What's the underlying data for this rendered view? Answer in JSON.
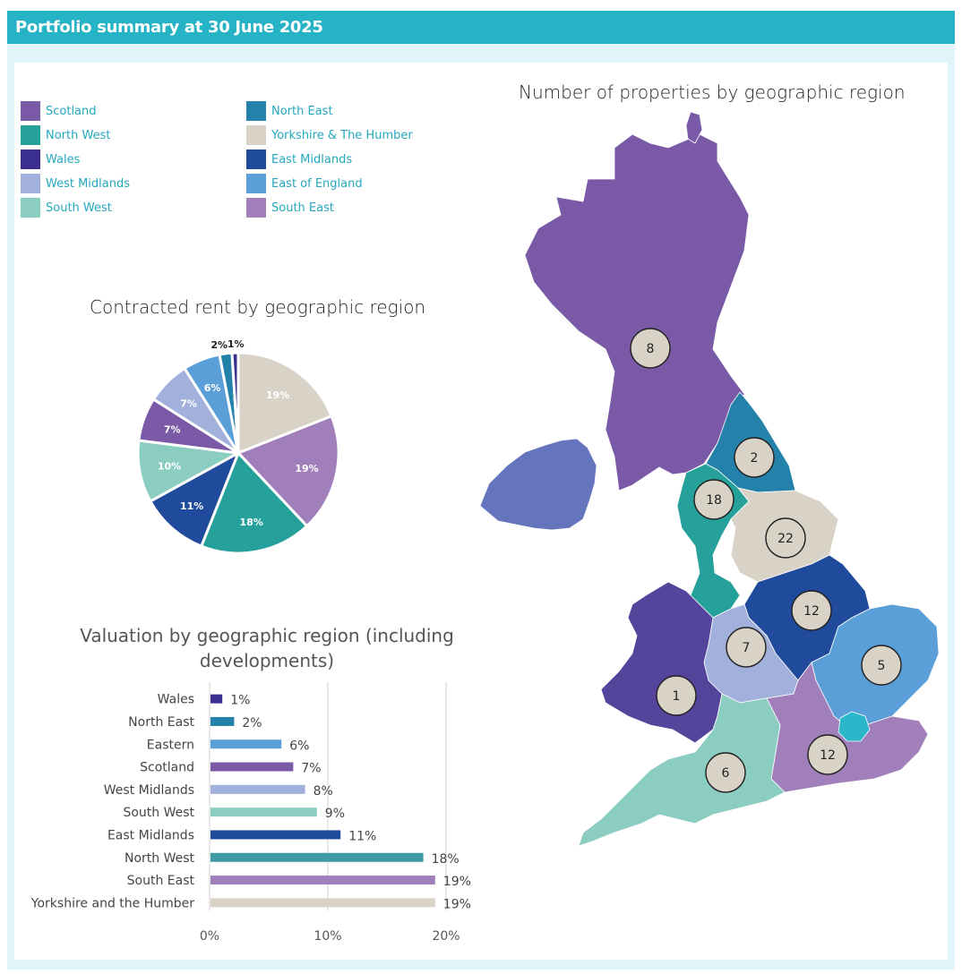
{
  "header": {
    "title": "Portfolio summary at 30 June 2025"
  },
  "colors": {
    "banner": "#25b3c5",
    "frame": "#dff5fa",
    "legend_text": "#25a8bd",
    "region_circle": "#d9d3c7"
  },
  "legend": {
    "items": [
      {
        "label": "Scotland",
        "color": "#7a5aa6"
      },
      {
        "label": "North West",
        "color": "#25a09a"
      },
      {
        "label": "Wales",
        "color": "#3a2f8f"
      },
      {
        "label": "West Midlands",
        "color": "#a2b1dc"
      },
      {
        "label": "South West",
        "color": "#8ccdc1"
      },
      {
        "label": "North East",
        "color": "#2482aa"
      },
      {
        "label": "Yorkshire & The Humber",
        "color": "#d9d3c7"
      },
      {
        "label": "East Midlands",
        "color": "#204a9b"
      },
      {
        "label": "East of England",
        "color": "#5b9fd8"
      },
      {
        "label": "South East",
        "color": "#a17fbb"
      }
    ]
  },
  "map": {
    "title": "Number of properties by geographic region",
    "regions": [
      {
        "name": "Scotland",
        "count": "8",
        "color": "#7a5aa6"
      },
      {
        "name": "Northern Ireland",
        "count": "",
        "color": "#6575bd"
      },
      {
        "name": "North East",
        "count": "2",
        "color": "#2482aa"
      },
      {
        "name": "North West",
        "count": "18",
        "color": "#25a09a"
      },
      {
        "name": "Yorkshire & The Humber",
        "count": "22",
        "color": "#d9d3c7"
      },
      {
        "name": "East Midlands",
        "count": "12",
        "color": "#204a9b"
      },
      {
        "name": "West Midlands",
        "count": "7",
        "color": "#a2b1dc"
      },
      {
        "name": "East of England",
        "count": "5",
        "color": "#5b9fd8"
      },
      {
        "name": "Wales",
        "count": "1",
        "color": "#54449c"
      },
      {
        "name": "South East",
        "count": "12",
        "color": "#a17fbb"
      },
      {
        "name": "South West",
        "count": "6",
        "color": "#8ccdc1"
      },
      {
        "name": "London",
        "count": "",
        "color": "#2bb6c9"
      }
    ]
  },
  "chart_data": [
    {
      "type": "pie",
      "title": "Contracted rent by geographic region",
      "slices": [
        {
          "label": "Yorkshire & The Humber",
          "value": 19,
          "display": "19%",
          "color": "#d9d3c7"
        },
        {
          "label": "South East",
          "value": 19,
          "display": "19%",
          "color": "#a17fbb"
        },
        {
          "label": "North West",
          "value": 18,
          "display": "18%",
          "color": "#25a09a"
        },
        {
          "label": "East Midlands",
          "value": 11,
          "display": "11%",
          "color": "#204a9b"
        },
        {
          "label": "South West",
          "value": 10,
          "display": "10%",
          "color": "#8ccdc1"
        },
        {
          "label": "Scotland",
          "value": 7,
          "display": "7%",
          "color": "#7a5aa6"
        },
        {
          "label": "West Midlands",
          "value": 7,
          "display": "7%",
          "color": "#a2b1dc"
        },
        {
          "label": "East of England",
          "value": 6,
          "display": "6%",
          "color": "#5b9fd8"
        },
        {
          "label": "North East",
          "value": 2,
          "display": "2%",
          "color": "#2482aa"
        },
        {
          "label": "Wales",
          "value": 1,
          "display": "1%",
          "color": "#3a2f8f"
        }
      ]
    },
    {
      "type": "bar",
      "orientation": "horizontal",
      "title": "Valuation by geographic region (including developments)",
      "categories": [
        "Wales",
        "North East",
        "Eastern",
        "Scotland",
        "West Midlands",
        "South West",
        "East Midlands",
        "North West",
        "South East",
        "Yorkshire and the Humber"
      ],
      "values": [
        1,
        2,
        6,
        7,
        8,
        9,
        11,
        18,
        19,
        19
      ],
      "value_labels": [
        "1%",
        "2%",
        "6%",
        "7%",
        "8%",
        "9%",
        "11%",
        "18%",
        "19%",
        "19%"
      ],
      "colors": [
        "#3a2f8f",
        "#2482aa",
        "#5b9fd8",
        "#7a5aa6",
        "#a2b1dc",
        "#8ccdc1",
        "#204a9b",
        "#3e9aa3",
        "#a17fbb",
        "#d9d3c7"
      ],
      "xlim": [
        0,
        20
      ],
      "xticks": [
        "0%",
        "10%",
        "20%"
      ],
      "grid": true
    }
  ]
}
